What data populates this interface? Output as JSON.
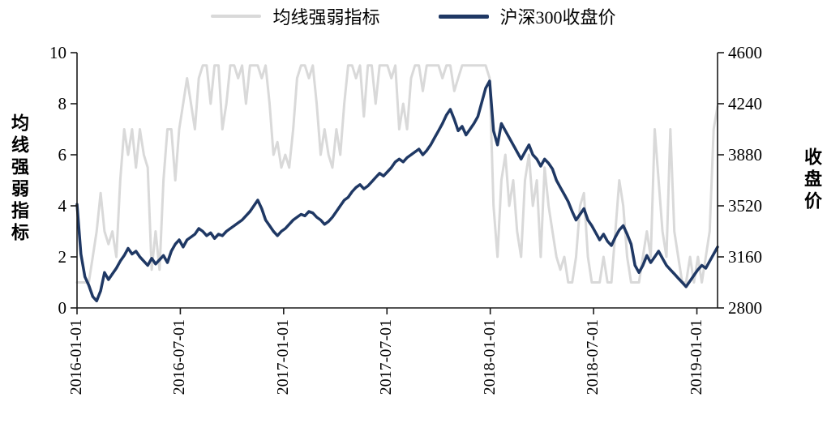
{
  "legend": {
    "items": [
      {
        "label": "均线强弱指标",
        "color": "#d9d9d9"
      },
      {
        "label": "沪深300收盘价",
        "color": "#1f3864"
      }
    ]
  },
  "left_axis": {
    "title": "均线强弱指标",
    "ticks": [
      0,
      2,
      4,
      6,
      8,
      10
    ],
    "range": [
      0,
      10
    ]
  },
  "right_axis": {
    "title": "收盘价",
    "ticks": [
      2800,
      3160,
      3520,
      3880,
      4240,
      4600
    ],
    "range": [
      2800,
      4600
    ]
  },
  "x_axis": {
    "tick_labels": [
      "2016-01-01",
      "2016-07-01",
      "2017-01-01",
      "2017-07-01",
      "2018-01-01",
      "2018-07-01",
      "2019-01-01"
    ],
    "tick_months": [
      0,
      6,
      12,
      18,
      24,
      30,
      36
    ],
    "domain_months": [
      0,
      37.2
    ]
  },
  "chart_data": {
    "type": "line",
    "title": "",
    "legend_position": "top",
    "grid": false,
    "series": [
      {
        "name": "均线强弱指标",
        "axis": "left",
        "color": "#d9d9d9",
        "stroke_width": 3,
        "values": [
          1,
          1,
          1,
          1,
          2,
          3,
          4.5,
          3,
          2.5,
          3,
          2,
          5,
          7,
          6,
          7,
          5.5,
          7,
          6,
          5.5,
          1.5,
          3,
          1.5,
          5,
          7,
          7,
          5,
          7,
          8,
          9,
          8,
          7,
          9,
          9.5,
          9.5,
          8,
          9.5,
          9.5,
          7,
          8,
          9.5,
          9.5,
          9,
          9.5,
          8,
          9.5,
          9.5,
          9.5,
          9,
          9.5,
          8,
          6,
          6.5,
          5.5,
          6,
          5.5,
          7,
          9,
          9.5,
          9.5,
          9,
          9.5,
          8,
          6,
          7,
          6,
          5.5,
          7,
          6,
          8,
          9.5,
          9.5,
          9,
          9.5,
          7.5,
          9.5,
          9.5,
          8,
          9.5,
          9.5,
          9.5,
          9,
          9.5,
          7,
          8,
          7,
          9,
          9.5,
          9.5,
          8.5,
          9.5,
          9.5,
          9.5,
          9.5,
          9,
          9.5,
          9.5,
          8.5,
          9,
          9.5,
          9.5,
          9.5,
          9.5,
          9.5,
          9.5,
          9.5,
          9,
          4,
          2,
          5,
          6,
          4,
          5,
          3,
          2,
          5,
          6,
          4,
          5,
          2,
          5.5,
          4,
          3,
          2,
          1.5,
          2,
          1,
          1,
          2,
          4,
          4.5,
          2,
          1,
          1,
          1,
          2,
          1,
          1,
          3,
          5,
          4,
          2,
          1,
          1,
          1,
          2,
          3,
          2,
          7,
          5,
          3,
          2,
          7,
          3,
          2,
          1,
          1,
          2,
          1,
          2,
          1,
          2,
          3,
          7,
          7.9
        ]
      },
      {
        "name": "沪深300收盘价",
        "axis": "right",
        "color": "#1f3864",
        "stroke_width": 3.5,
        "values": [
          3530,
          3180,
          3020,
          2960,
          2880,
          2850,
          2920,
          3050,
          3000,
          3040,
          3080,
          3130,
          3170,
          3220,
          3180,
          3200,
          3160,
          3130,
          3100,
          3150,
          3110,
          3140,
          3170,
          3120,
          3200,
          3250,
          3280,
          3230,
          3280,
          3300,
          3320,
          3360,
          3340,
          3310,
          3330,
          3290,
          3320,
          3310,
          3340,
          3360,
          3380,
          3400,
          3420,
          3450,
          3480,
          3520,
          3560,
          3500,
          3420,
          3380,
          3340,
          3310,
          3340,
          3360,
          3390,
          3420,
          3440,
          3460,
          3450,
          3480,
          3470,
          3440,
          3420,
          3390,
          3410,
          3440,
          3480,
          3520,
          3560,
          3580,
          3620,
          3650,
          3670,
          3640,
          3660,
          3690,
          3720,
          3750,
          3730,
          3760,
          3790,
          3830,
          3850,
          3830,
          3860,
          3880,
          3900,
          3920,
          3880,
          3910,
          3950,
          4000,
          4050,
          4100,
          4160,
          4200,
          4130,
          4050,
          4080,
          4020,
          4060,
          4100,
          4150,
          4250,
          4350,
          4400,
          4050,
          3950,
          4100,
          4050,
          4000,
          3950,
          3900,
          3850,
          3900,
          3950,
          3880,
          3850,
          3800,
          3850,
          3820,
          3780,
          3700,
          3650,
          3600,
          3550,
          3480,
          3420,
          3460,
          3500,
          3420,
          3380,
          3330,
          3280,
          3320,
          3270,
          3240,
          3300,
          3350,
          3380,
          3320,
          3250,
          3100,
          3050,
          3100,
          3170,
          3120,
          3160,
          3200,
          3150,
          3100,
          3070,
          3040,
          3010,
          2980,
          2950,
          2990,
          3030,
          3070,
          3100,
          3080,
          3130,
          3180,
          3230
        ]
      }
    ]
  }
}
